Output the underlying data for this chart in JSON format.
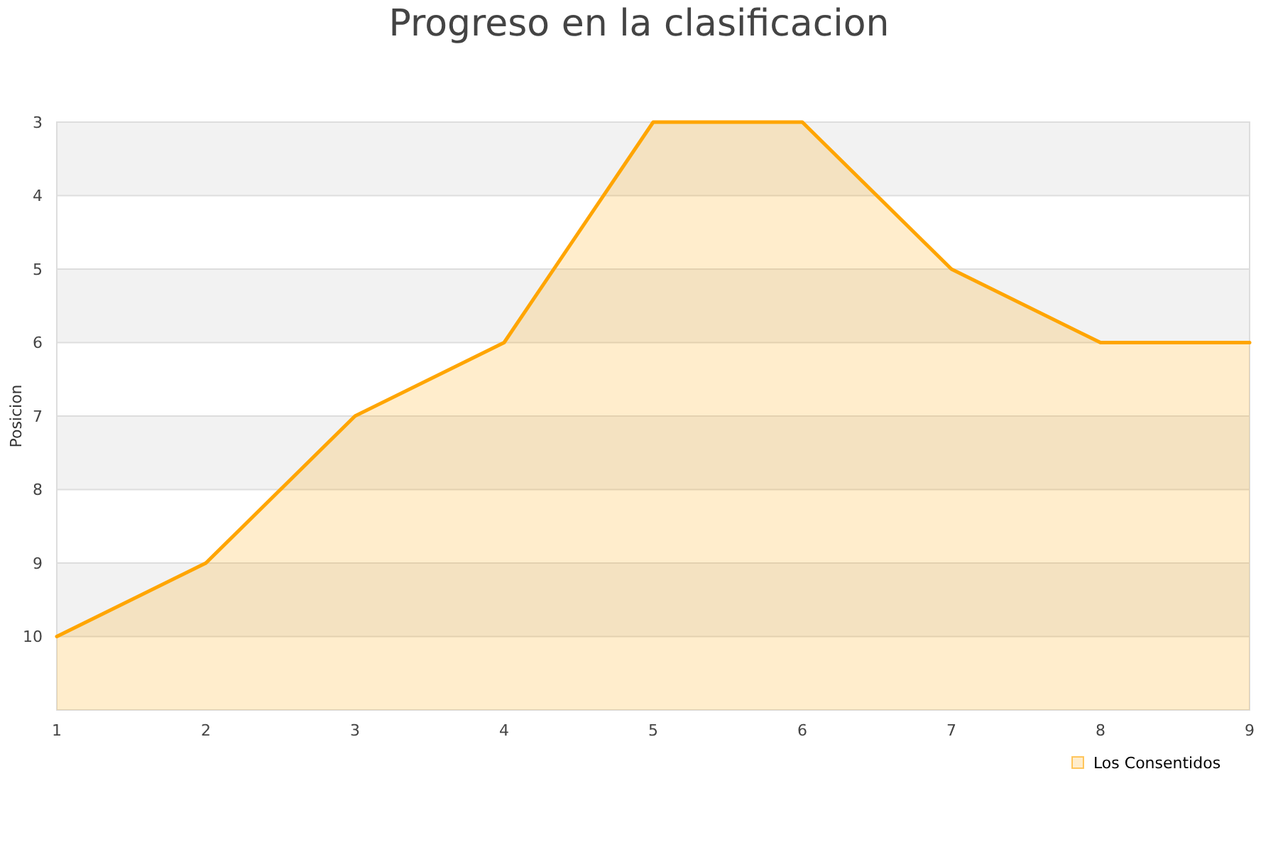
{
  "chart_data": {
    "type": "line",
    "title": "Progreso en la clasificacion",
    "ylabel": "Posicion",
    "x": [
      1,
      2,
      3,
      4,
      5,
      6,
      7,
      8,
      9
    ],
    "series": [
      {
        "name": "Los Consentidos",
        "color": "#ffa500",
        "values": [
          10,
          9,
          7,
          6,
          3,
          3,
          5,
          6,
          6
        ],
        "lower": [
          10,
          9,
          7,
          6,
          3,
          3,
          5,
          6,
          6
        ],
        "upper": [
          11,
          11,
          11,
          11,
          11,
          11,
          11,
          11,
          11
        ]
      }
    ],
    "xlim": [
      1,
      9
    ],
    "xticks": [
      1,
      2,
      3,
      4,
      5,
      6,
      7,
      8,
      9
    ],
    "ylim": [
      11,
      3
    ],
    "yticks": [
      3,
      4,
      5,
      6,
      7,
      8,
      9,
      10
    ],
    "bands": [
      {
        "axis": "y",
        "from": 3,
        "to": 4,
        "color": "#f2f2f2"
      },
      {
        "axis": "y",
        "from": 5,
        "to": 6,
        "color": "#f2f2f2"
      },
      {
        "axis": "y",
        "from": 7,
        "to": 8,
        "color": "#f2f2f2"
      },
      {
        "axis": "y",
        "from": 9,
        "to": 10,
        "color": "#f2f2f2"
      }
    ],
    "grid": "y",
    "legend": "bottom right"
  }
}
